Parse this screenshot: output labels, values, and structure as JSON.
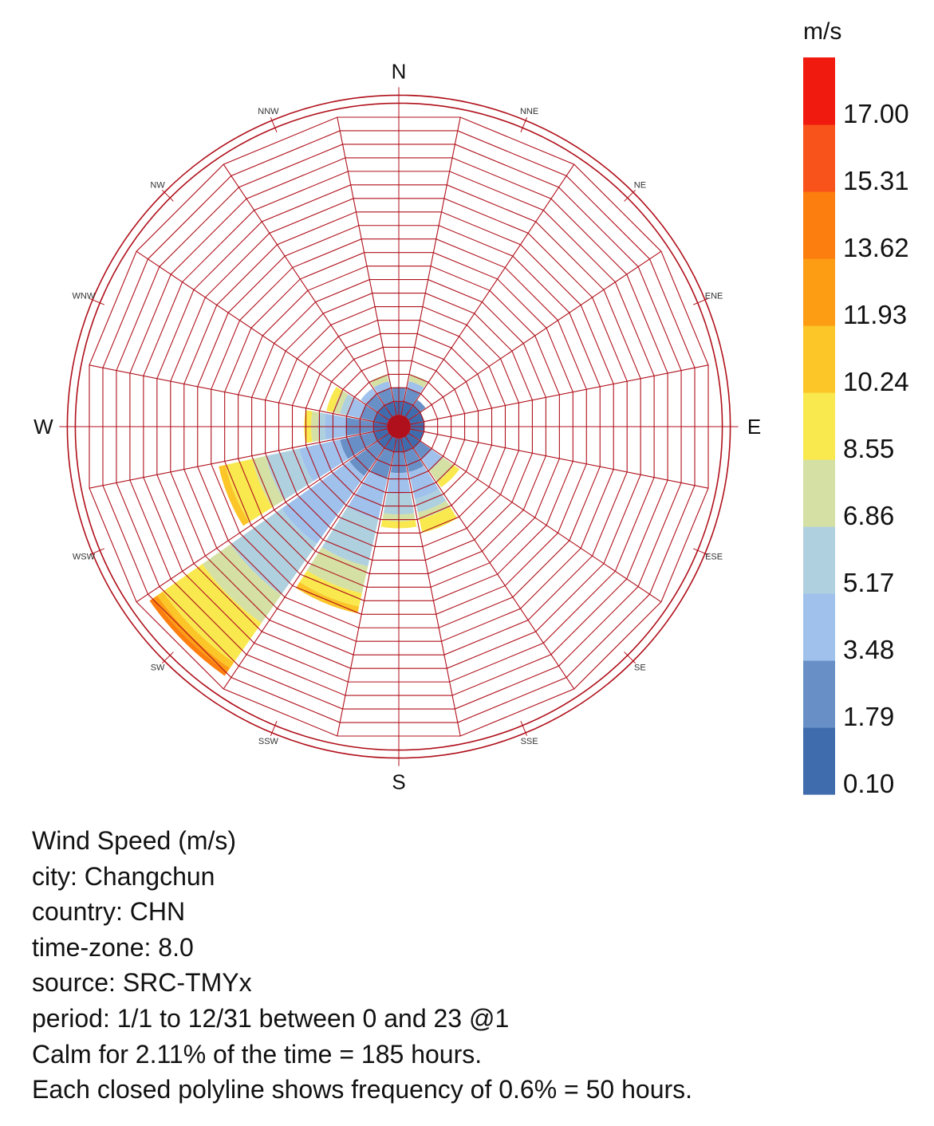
{
  "chart_data": {
    "type": "wind-rose",
    "unit": "m/s",
    "directions": [
      "N",
      "NNE",
      "NE",
      "ENE",
      "E",
      "ESE",
      "SE",
      "SSE",
      "S",
      "SSW",
      "SW",
      "WSW",
      "W",
      "WNW",
      "NW",
      "NNW"
    ],
    "legend_ticks": [
      "17.00",
      "15.31",
      "13.62",
      "11.93",
      "10.24",
      "8.55",
      "6.86",
      "5.17",
      "3.48",
      "1.79",
      "0.10"
    ],
    "bin_edges": [
      0.1,
      1.79,
      3.48,
      5.17,
      6.86,
      8.55,
      10.24,
      11.93,
      13.62,
      15.31,
      17.0,
      18.69
    ],
    "bin_colors": [
      "#3f6cad",
      "#6890c6",
      "#9fc1eb",
      "#afd0de",
      "#d4e0a4",
      "#f9e84e",
      "#fcc528",
      "#fd9d14",
      "#fb7e0e",
      "#f8531b",
      "#f11a0e"
    ],
    "ring_frequency_percent": 0.6,
    "ring_hours": 50,
    "ring_count": 22,
    "frequency_percent": {
      "N": [
        0.6,
        0.6,
        0.0,
        0.0,
        0.0,
        0.0,
        0,
        0,
        0,
        0,
        0
      ],
      "NNE": [
        0.6,
        0.6,
        0.3,
        0.0,
        0.3,
        0.0,
        0,
        0,
        0,
        0,
        0
      ],
      "NE": [
        0.6,
        0.3,
        0.0,
        0.0,
        0.0,
        0.0,
        0,
        0,
        0,
        0,
        0
      ],
      "ENE": [
        0.6,
        0.0,
        0.0,
        0.0,
        0.0,
        0.0,
        0,
        0,
        0,
        0,
        0
      ],
      "E": [
        0.6,
        0.0,
        0.0,
        0.0,
        0.0,
        0.0,
        0,
        0,
        0,
        0,
        0
      ],
      "ESE": [
        0.6,
        0.0,
        0.0,
        0.0,
        0.0,
        0.0,
        0,
        0,
        0,
        0,
        0
      ],
      "SE": [
        0.6,
        0.6,
        0.6,
        0.0,
        0.6,
        0.3,
        0,
        0,
        0,
        0,
        0
      ],
      "SSE": [
        0.6,
        0.9,
        1.2,
        0.6,
        0.3,
        0.6,
        0,
        0,
        0,
        0,
        0
      ],
      "S": [
        0.6,
        0.9,
        0.9,
        0.9,
        0.3,
        0.3,
        0,
        0,
        0,
        0,
        0
      ],
      "SSW": [
        0.6,
        1.2,
        1.8,
        2.1,
        1.2,
        0.6,
        0.3,
        0,
        0,
        0,
        0
      ],
      "SW": [
        0.6,
        1.5,
        3.6,
        2.7,
        1.5,
        2.1,
        0.3,
        0.2,
        0.2,
        0,
        0
      ],
      "WSW": [
        0.6,
        1.5,
        1.8,
        1.5,
        0.6,
        1.2,
        0.3,
        0,
        0,
        0,
        0
      ],
      "W": [
        0.6,
        1.2,
        0.9,
        0.3,
        0.3,
        0.3,
        0,
        0,
        0,
        0,
        0
      ],
      "WNW": [
        0.6,
        0.6,
        0.6,
        0.3,
        0.3,
        0.3,
        0,
        0,
        0,
        0,
        0
      ],
      "NW": [
        0.6,
        0.6,
        0.3,
        0.0,
        0.0,
        0.0,
        0,
        0,
        0,
        0,
        0
      ],
      "NNW": [
        0.6,
        0.6,
        0.3,
        0.0,
        0.3,
        0.0,
        0,
        0,
        0,
        0,
        0
      ]
    },
    "info_lines": [
      "Wind Speed (m/s)",
      "city: Changchun",
      "country: CHN",
      "time-zone: 8.0",
      "source: SRC-TMYx",
      "period: 1/1 to 12/31 between 0 and 23 @1",
      "Calm for 2.11% of the time = 185 hours.",
      "Each closed polyline shows frequency of 0.6% = 50 hours."
    ]
  }
}
